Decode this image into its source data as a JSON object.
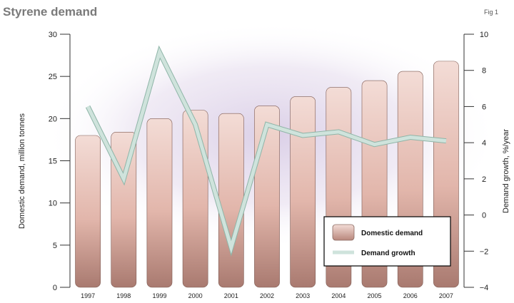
{
  "header": {
    "title": "Styrene demand",
    "fig_label": "Fig 1"
  },
  "colors": {
    "bar_top": "#f3dcd6",
    "bar_mid": "#e2b6ab",
    "bar_bottom": "#a97a70",
    "bar_stroke": "#7d5a52",
    "line": "#cfe3dc",
    "line_outline": "#8fb5a8",
    "glow": "#d9cde6",
    "axis": "#333333"
  },
  "chart_data": {
    "type": "bar",
    "categories": [
      "1997",
      "1998",
      "1999",
      "2000",
      "2001",
      "2002",
      "2003",
      "2004",
      "2005",
      "2006",
      "2007"
    ],
    "xlabel": "",
    "ylabel": "Domestic demand, million tonnes",
    "y2label": "Demand growth, %/year",
    "ylim": [
      0,
      30
    ],
    "y2lim": [
      -4,
      10
    ],
    "yticks": [
      0,
      5,
      10,
      15,
      20,
      25,
      30
    ],
    "y2ticks": [
      -4,
      -2,
      0,
      2,
      4,
      6,
      8,
      10
    ],
    "series": [
      {
        "name": "Domestic demand",
        "type": "bar",
        "axis": "left",
        "values": [
          18.0,
          18.4,
          20.0,
          21.0,
          20.6,
          21.5,
          22.6,
          23.7,
          24.5,
          25.6,
          26.8
        ]
      },
      {
        "name": "Demand growth",
        "type": "line",
        "axis": "right",
        "values": [
          6.0,
          2.0,
          9.0,
          5.0,
          -1.8,
          5.0,
          4.4,
          4.6,
          3.9,
          4.3,
          4.1
        ]
      }
    ],
    "legend": {
      "position": "bottom-right",
      "entries": [
        "Domestic demand",
        "Demand growth"
      ]
    },
    "grid": false
  }
}
